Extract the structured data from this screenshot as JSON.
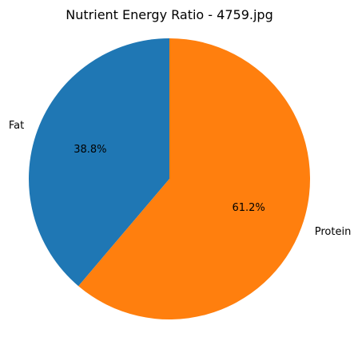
{
  "chart_data": {
    "type": "pie",
    "title": "Nutrient Energy Ratio - 4759.jpg",
    "start_angle": "top (12 o'clock), counter-clockwise",
    "slices": [
      {
        "label": "Fat",
        "value": 38.8,
        "display": "38.8%",
        "color": "#1f77b4"
      },
      {
        "label": "Protein",
        "value": 61.2,
        "display": "61.2%",
        "color": "#ff7f0e"
      }
    ]
  }
}
